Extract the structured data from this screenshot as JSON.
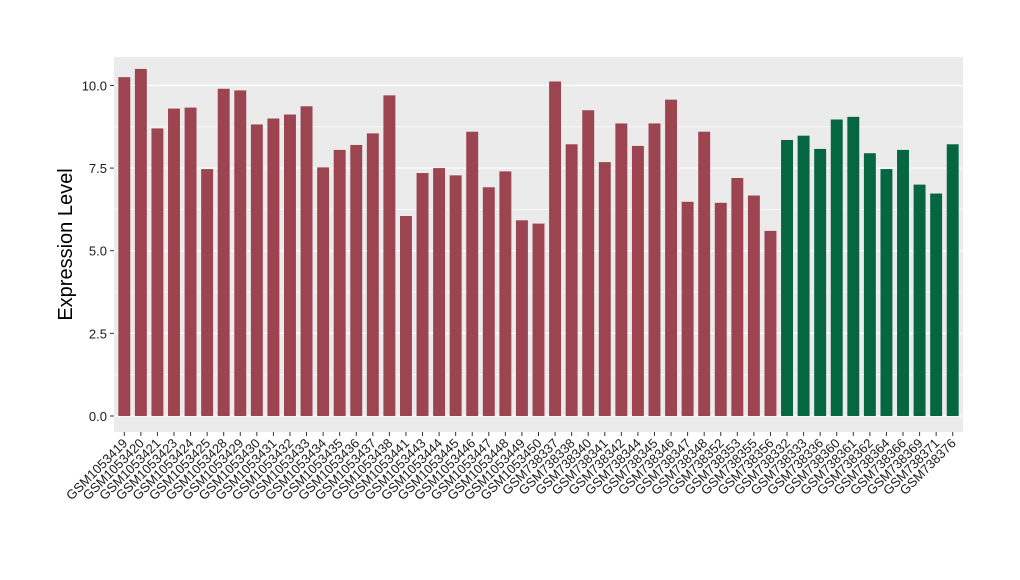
{
  "chart_data": {
    "type": "bar",
    "ylabel": "Expression Level",
    "xlabel": "",
    "ylim": [
      0,
      10.8
    ],
    "yticks": [
      "0.0",
      "2.5",
      "5.0",
      "7.5",
      "10.0"
    ],
    "ytick_values": [
      0,
      2.5,
      5.0,
      7.5,
      10.0
    ],
    "grid": true,
    "panel_background": "#ebebeb",
    "grid_color": "#ffffff",
    "group_colors": {
      "group1": "#9c4450",
      "group2": "#066642"
    },
    "categories": [
      "GSM1053419",
      "GSM1053420",
      "GSM1053421",
      "GSM1053423",
      "GSM1053424",
      "GSM1053425",
      "GSM1053428",
      "GSM1053429",
      "GSM1053430",
      "GSM1053431",
      "GSM1053432",
      "GSM1053433",
      "GSM1053434",
      "GSM1053435",
      "GSM1053436",
      "GSM1053437",
      "GSM1053438",
      "GSM1053441",
      "GSM1053443",
      "GSM1053444",
      "GSM1053445",
      "GSM1053446",
      "GSM1053447",
      "GSM1053448",
      "GSM1053449",
      "GSM1053450",
      "GSM738337",
      "GSM738338",
      "GSM738340",
      "GSM738341",
      "GSM738342",
      "GSM738344",
      "GSM738345",
      "GSM738346",
      "GSM738347",
      "GSM738348",
      "GSM738352",
      "GSM738353",
      "GSM738355",
      "GSM738356",
      "GSM738332",
      "GSM738333",
      "GSM738336",
      "GSM738360",
      "GSM738361",
      "GSM738362",
      "GSM738364",
      "GSM738366",
      "GSM738369",
      "GSM738371",
      "GSM738376"
    ],
    "values": [
      10.25,
      10.5,
      8.7,
      9.3,
      9.33,
      7.47,
      9.9,
      9.85,
      8.82,
      9.0,
      9.12,
      9.37,
      7.52,
      8.05,
      8.2,
      8.55,
      9.7,
      6.05,
      7.35,
      7.5,
      7.28,
      8.6,
      6.92,
      7.4,
      5.92,
      5.82,
      10.12,
      8.22,
      9.25,
      7.68,
      8.85,
      8.17,
      8.85,
      9.57,
      6.48,
      8.6,
      6.45,
      7.2,
      6.67,
      5.6,
      8.35,
      8.48,
      8.08,
      8.97,
      9.05,
      7.95,
      7.47,
      8.05,
      7.0,
      6.73,
      8.22
    ],
    "groups": [
      "group1",
      "group1",
      "group1",
      "group1",
      "group1",
      "group1",
      "group1",
      "group1",
      "group1",
      "group1",
      "group1",
      "group1",
      "group1",
      "group1",
      "group1",
      "group1",
      "group1",
      "group1",
      "group1",
      "group1",
      "group1",
      "group1",
      "group1",
      "group1",
      "group1",
      "group1",
      "group1",
      "group1",
      "group1",
      "group1",
      "group1",
      "group1",
      "group1",
      "group1",
      "group1",
      "group1",
      "group1",
      "group1",
      "group1",
      "group1",
      "group2",
      "group2",
      "group2",
      "group2",
      "group2",
      "group2",
      "group2",
      "group2",
      "group2",
      "group2",
      "group2"
    ]
  }
}
